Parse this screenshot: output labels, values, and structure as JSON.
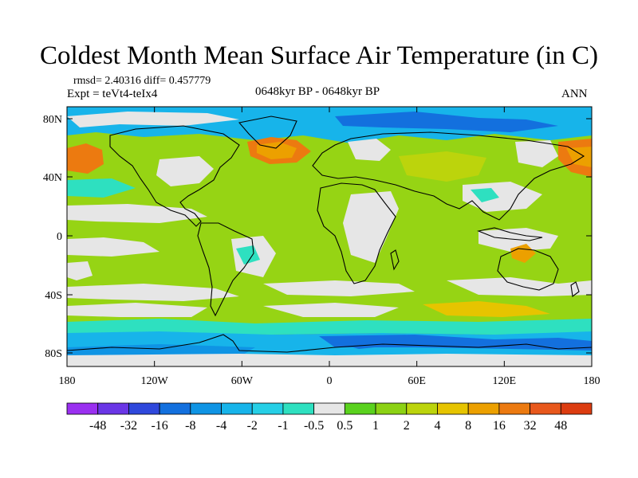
{
  "title": "Coldest Month Mean Surface Air Temperature (in C)",
  "stats": "rmsd= 2.40316 diff= 0.457779",
  "experiment": "Expt = teVt4-teIx4",
  "period": "0648kyr BP - 0648kyr BP",
  "season": "ANN",
  "axes": {
    "lat_labels": [
      "80N",
      "40N",
      "0",
      "40S",
      "80S"
    ],
    "lon_labels": [
      "180",
      "120W",
      "60W",
      "0",
      "60E",
      "120E",
      "180"
    ]
  },
  "colorbar": {
    "labels": [
      "-48",
      "-32",
      "-16",
      "-8",
      "-4",
      "-2",
      "-1",
      "-0.5",
      "0.5",
      "1",
      "2",
      "4",
      "8",
      "16",
      "32",
      "48"
    ],
    "colors": [
      "#9a30f0",
      "#6a36e6",
      "#2f48dc",
      "#1370de",
      "#0f94e4",
      "#17b4ea",
      "#26cfe6",
      "#2ee0c0",
      "#e6e6e6",
      "#5ad21e",
      "#8cd214",
      "#bcd40c",
      "#e6c400",
      "#eca000",
      "#ec7a10",
      "#e8581c",
      "#dc3c10"
    ]
  },
  "map_colors": {
    "background": "#96d414",
    "neutral": "#e6e6e6",
    "cool": "#2ee0c0",
    "cold": "#17b4ea",
    "colder": "#0f94e4",
    "coldest": "#1370de",
    "warm": "#bcd40c",
    "warmer": "#e6c400",
    "hot": "#eca000",
    "hotter": "#ec7a10",
    "coast": "#000000"
  }
}
